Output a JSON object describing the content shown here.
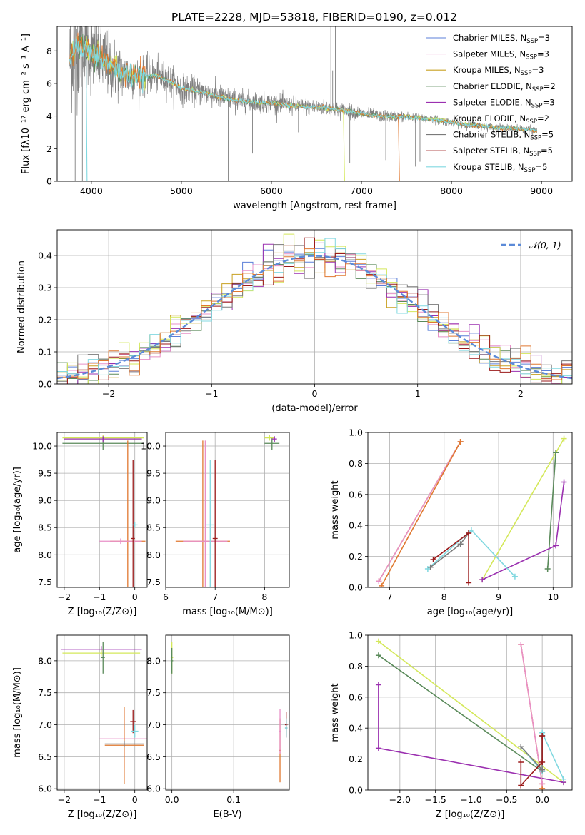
{
  "figure": {
    "title": "PLATE=2228, MJD=53818, FIBERID=0190, z=0.012"
  },
  "colors": {
    "Chabrier MILES": "#5b7fd8",
    "Salpeter MILES": "#e890c8",
    "Kroupa MILES": "#c8a020",
    "Chabrier ELODIE": "#5a8a5a",
    "Salpeter ELODIE": "#9b30b0",
    "Kroupa ELODIE": "#d4e85a",
    "Chabrier STELIB": "#7a7a7a",
    "Salpeter STELIB": "#9b1a1a",
    "Kroupa STELIB": "#80d8e0",
    "orange": "#e07830",
    "normal": "#5b8ad8",
    "data": "#808080"
  },
  "chart_data": [
    {
      "id": "spectrum",
      "type": "line",
      "xlabel": "wavelength [Angstrom, rest frame]",
      "ylabel": "Flux [fλ10⁻¹⁷ erg cm⁻² s⁻¹ A⁻¹]",
      "xlim": [
        3620,
        9340
      ],
      "ylim": [
        0,
        9.5
      ],
      "xticks": [
        4000,
        5000,
        6000,
        7000,
        8000,
        9000
      ],
      "yticks": [
        0,
        2,
        4,
        6,
        8
      ],
      "grid": false,
      "legend_position": "top-right",
      "legend": [
        {
          "label": "Chabrier MILES, N",
          "sub": "SSP",
          "tail": "=3",
          "series": "Chabrier MILES"
        },
        {
          "label": "Salpeter MILES, N",
          "sub": "SSP",
          "tail": "=3",
          "series": "Salpeter MILES"
        },
        {
          "label": "Kroupa MILES, N",
          "sub": "SSP",
          "tail": "=3",
          "series": "Kroupa MILES"
        },
        {
          "label": "Chabrier ELODIE, N",
          "sub": "SSP",
          "tail": "=2",
          "series": "Chabrier ELODIE"
        },
        {
          "label": "Salpeter ELODIE, N",
          "sub": "SSP",
          "tail": "=3",
          "series": "Salpeter ELODIE"
        },
        {
          "label": "Kroupa ELODIE, N",
          "sub": "SSP",
          "tail": "=2",
          "series": "Kroupa ELODIE"
        },
        {
          "label": "Chabrier STELIB, N",
          "sub": "SSP",
          "tail": "=5",
          "series": "Chabrier STELIB"
        },
        {
          "label": "Salpeter STELIB, N",
          "sub": "SSP",
          "tail": "=5",
          "series": "Salpeter STELIB"
        },
        {
          "label": "Kroupa STELIB, N",
          "sub": "SSP",
          "tail": "=5",
          "series": "Kroupa STELIB"
        }
      ],
      "model_continuum": [
        [
          3760,
          7.6
        ],
        [
          3850,
          8.4
        ],
        [
          3950,
          8.1
        ],
        [
          4050,
          7.8
        ],
        [
          4200,
          7.1
        ],
        [
          4350,
          6.6
        ],
        [
          4500,
          6.4
        ],
        [
          4700,
          6.5
        ],
        [
          4860,
          6.2
        ],
        [
          5000,
          5.7
        ],
        [
          5200,
          5.5
        ],
        [
          5400,
          5.2
        ],
        [
          5600,
          4.95
        ],
        [
          5800,
          4.85
        ],
        [
          6000,
          4.8
        ],
        [
          6200,
          4.65
        ],
        [
          6400,
          4.55
        ],
        [
          6600,
          4.5
        ],
        [
          6800,
          4.35
        ],
        [
          7000,
          4.15
        ],
        [
          7200,
          4.0
        ],
        [
          7500,
          3.95
        ],
        [
          7800,
          3.8
        ],
        [
          8000,
          3.6
        ],
        [
          8200,
          3.45
        ],
        [
          8400,
          3.35
        ],
        [
          8600,
          3.25
        ],
        [
          8800,
          3.2
        ],
        [
          8950,
          3.1
        ]
      ],
      "data_range": [
        3760,
        8950
      ],
      "data_noise_sigma": [
        [
          3760,
          1.8
        ],
        [
          4000,
          1.3
        ],
        [
          4500,
          0.6
        ],
        [
          5000,
          0.45
        ],
        [
          5500,
          0.35
        ],
        [
          6000,
          0.3
        ],
        [
          6500,
          0.25
        ],
        [
          7000,
          0.2
        ],
        [
          7500,
          0.15
        ],
        [
          8000,
          0.12
        ],
        [
          8950,
          0.12
        ]
      ],
      "data_spikes": [
        [
          5520,
          0.0
        ],
        [
          5790,
          1.7
        ],
        [
          6300,
          3.0
        ],
        [
          6660,
          9.5
        ],
        [
          6680,
          6.8
        ],
        [
          6710,
          9.5
        ],
        [
          6870,
          1.1
        ],
        [
          7270,
          1.3
        ],
        [
          7600,
          0.9
        ],
        [
          7650,
          1.2
        ],
        [
          3900,
          0.0
        ],
        [
          3820,
          0.0
        ]
      ],
      "model_drops": [
        {
          "series": "orange",
          "x": 7410,
          "y": 0.0
        },
        {
          "series": "Kroupa ELODIE",
          "x": 6800,
          "y": 0.0
        },
        {
          "series": "Kroupa STELIB",
          "x": 3940,
          "y": 0.0
        }
      ]
    },
    {
      "id": "residuals",
      "type": "step",
      "xlabel": "(data-model)/error",
      "ylabel": "Normed distribution",
      "xlim": [
        -2.5,
        2.5
      ],
      "ylim": [
        0,
        0.48
      ],
      "xticks": [
        -2,
        -1,
        0,
        1,
        2
      ],
      "yticks": [
        0.0,
        0.1,
        0.2,
        0.3,
        0.4
      ],
      "grid": true,
      "legend_position": "top-right",
      "legend": [
        {
          "label": "𝒩(0, 1)",
          "style": "dashed"
        }
      ],
      "bin_width": 0.1,
      "bin_start": -2.5,
      "noise_amplitude": 0.025
    },
    {
      "id": "age-vs-Z",
      "type": "errorbar",
      "xlabel": "Z [log₁₀(Z/Z⊙)]",
      "ylabel": "age  [log₁₀(age/yr)]",
      "xlim": [
        -2.2,
        0.35
      ],
      "ylim": [
        7.4,
        10.25
      ],
      "xticks": [
        -2,
        -1,
        0
      ],
      "yticks": [
        7.5,
        8.0,
        8.5,
        9.0,
        9.5,
        10.0
      ],
      "grid": true,
      "points": [
        {
          "series": "Kroupa ELODIE",
          "x": -0.9,
          "y": 10.15,
          "xerr": 1.15,
          "yerr": 0.05
        },
        {
          "series": "Chabrier ELODIE",
          "x": -0.9,
          "y": 10.05,
          "xerr": 1.15,
          "yerr": 0.12
        },
        {
          "series": "Salpeter ELODIE",
          "x": -0.9,
          "y": 10.13,
          "xerr": 1.1,
          "yerr": 0.05
        },
        {
          "series": "orange",
          "x": -0.2,
          "y": 8.25,
          "xerr": 0.5,
          "yerr": 1.85
        },
        {
          "series": "Salpeter MILES",
          "x": -0.4,
          "y": 8.25,
          "xerr": 0.6,
          "yerr": 0.05
        },
        {
          "series": "Salpeter STELIB",
          "x": -0.05,
          "y": 8.3,
          "xerr": 0.05,
          "yerr": 1.45
        },
        {
          "series": "Kroupa STELIB",
          "x": 0.0,
          "y": 8.55,
          "xerr": 0.08,
          "yerr": 0.05
        }
      ]
    },
    {
      "id": "age-vs-mass",
      "type": "errorbar",
      "xlabel": "mass [log₁₀(M/M⊙)]",
      "ylabel": "",
      "xlim": [
        6.0,
        8.5
      ],
      "ylim": [
        7.4,
        10.25
      ],
      "xticks": [
        6,
        7,
        8
      ],
      "yticks": [
        7.5,
        8.0,
        8.5,
        9.0,
        9.5,
        10.0
      ],
      "grid": true,
      "points": [
        {
          "series": "Chabrier ELODIE",
          "x": 8.15,
          "y": 10.05,
          "xerr": 0.15,
          "yerr": 0.12
        },
        {
          "series": "Kroupa ELODIE",
          "x": 8.1,
          "y": 10.15,
          "xerr": 0.1,
          "yerr": 0.05
        },
        {
          "series": "Salpeter ELODIE",
          "x": 8.2,
          "y": 10.13,
          "xerr": 0.05,
          "yerr": 0.05
        },
        {
          "series": "orange",
          "x": 6.75,
          "y": 8.25,
          "xerr": 0.55,
          "yerr": 1.85
        },
        {
          "series": "Salpeter MILES",
          "x": 6.8,
          "y": 8.25,
          "xerr": 0.45,
          "yerr": 1.85
        },
        {
          "series": "Salpeter STELIB",
          "x": 7.0,
          "y": 8.3,
          "xerr": 0.05,
          "yerr": 1.45
        },
        {
          "series": "Kroupa STELIB",
          "x": 6.9,
          "y": 8.55,
          "xerr": 0.08,
          "yerr": 1.2
        }
      ]
    },
    {
      "id": "mass-weight-vs-age",
      "type": "line",
      "xlabel": "age  [log₁₀(age/yr)]",
      "ylabel": "mass weight",
      "xlim": [
        6.6,
        10.35
      ],
      "ylim": [
        0,
        1.0
      ],
      "xticks": [
        7,
        8,
        9,
        10
      ],
      "yticks": [
        0.0,
        0.2,
        0.4,
        0.6,
        0.8,
        1.0
      ],
      "grid": true,
      "series": [
        {
          "name": "Kroupa MILES",
          "x": [
            6.8,
            8.3
          ],
          "y": [
            0.04,
            0.94
          ]
        },
        {
          "name": "Salpeter MILES",
          "x": [
            6.8,
            8.3
          ],
          "y": [
            0.04,
            0.94
          ]
        },
        {
          "name": "orange",
          "x": [
            6.85,
            8.3
          ],
          "y": [
            0.01,
            0.94
          ]
        },
        {
          "name": "Kroupa ELODIE",
          "x": [
            8.7,
            10.2
          ],
          "y": [
            0.05,
            0.96
          ]
        },
        {
          "name": "Chabrier ELODIE",
          "x": [
            9.9,
            10.05
          ],
          "y": [
            0.12,
            0.87
          ]
        },
        {
          "name": "Salpeter ELODIE",
          "x": [
            8.7,
            10.05,
            10.2
          ],
          "y": [
            0.05,
            0.27,
            0.68
          ]
        },
        {
          "name": "Kroupa STELIB",
          "x": [
            7.7,
            8.5,
            9.3
          ],
          "y": [
            0.12,
            0.37,
            0.07
          ]
        },
        {
          "name": "Chabrier STELIB",
          "x": [
            7.75,
            8.3,
            8.45
          ],
          "y": [
            0.13,
            0.28,
            0.35
          ]
        },
        {
          "name": "Salpeter STELIB",
          "x": [
            7.8,
            8.45,
            8.45
          ],
          "y": [
            0.18,
            0.35,
            0.03
          ]
        }
      ]
    },
    {
      "id": "mass-vs-Z",
      "type": "errorbar",
      "xlabel": "Z [log₁₀(Z/Z⊙)]",
      "ylabel": "mass [log₁₀(M/M⊙)]",
      "xlim": [
        -2.2,
        0.35
      ],
      "ylim": [
        5.98,
        8.4
      ],
      "xticks": [
        -2,
        -1,
        0
      ],
      "yticks": [
        6.0,
        6.5,
        7.0,
        7.5,
        8.0
      ],
      "grid": true,
      "points": [
        {
          "series": "Salpeter ELODIE",
          "x": -0.95,
          "y": 8.18,
          "xerr": 1.15,
          "yerr": 0.05
        },
        {
          "series": "Kroupa ELODIE",
          "x": -0.95,
          "y": 8.12,
          "xerr": 1.1,
          "yerr": 0.05
        },
        {
          "series": "Chabrier ELODIE",
          "x": -0.9,
          "y": 8.05,
          "xerr": 0.05,
          "yerr": 0.25
        },
        {
          "series": "Salpeter MILES",
          "x": -0.3,
          "y": 6.78,
          "xerr": 0.7,
          "yerr": 0.45
        },
        {
          "series": "orange",
          "x": -0.3,
          "y": 6.68,
          "xerr": 0.55,
          "yerr": 0.6
        },
        {
          "series": "Chabrier STELIB",
          "x": -0.3,
          "y": 6.7,
          "xerr": 0.55,
          "yerr": 0.05
        },
        {
          "series": "Salpeter STELIB",
          "x": -0.05,
          "y": 7.05,
          "xerr": 0.08,
          "yerr": 0.18
        },
        {
          "series": "Kroupa STELIB",
          "x": 0.0,
          "y": 6.9,
          "xerr": 0.1,
          "yerr": 0.1
        }
      ]
    },
    {
      "id": "mass-vs-ebv",
      "type": "errorbar",
      "xlabel": "E(B-V)",
      "ylabel": "",
      "xlim": [
        -0.01,
        0.19
      ],
      "ylim": [
        5.98,
        8.4
      ],
      "xticks": [
        0.0,
        0.1
      ],
      "yticks": [
        6.0,
        6.5,
        7.0,
        7.5,
        8.0
      ],
      "grid": true,
      "points": [
        {
          "series": "Kroupa ELODIE",
          "x": 0.0,
          "y": 8.05,
          "xerr": 0.002,
          "yerr": 0.25
        },
        {
          "series": "Chabrier ELODIE",
          "x": 0.0,
          "y": 8.0,
          "xerr": 0.002,
          "yerr": 0.2
        },
        {
          "series": "orange",
          "x": 0.175,
          "y": 6.6,
          "xerr": 0.002,
          "yerr": 0.5
        },
        {
          "series": "Salpeter MILES",
          "x": 0.175,
          "y": 6.9,
          "xerr": 0.002,
          "yerr": 0.35
        },
        {
          "series": "Salpeter STELIB",
          "x": 0.185,
          "y": 7.0,
          "xerr": 0.002,
          "yerr": 0.2
        },
        {
          "series": "Chabrier STELIB",
          "x": 0.185,
          "y": 6.95,
          "xerr": 0.002,
          "yerr": 0.12
        },
        {
          "series": "Kroupa STELIB",
          "x": 0.185,
          "y": 6.95,
          "xerr": 0.002,
          "yerr": 0.15
        }
      ]
    },
    {
      "id": "mass-weight-vs-Z",
      "type": "line",
      "xlabel": "Z [log₁₀(Z/Z⊙)]",
      "ylabel": "mass weight",
      "xlim": [
        -2.45,
        0.42
      ],
      "ylim": [
        0,
        1.0
      ],
      "xticks": [
        -2.0,
        -1.5,
        -1.0,
        -0.5,
        0.0
      ],
      "xticklabels": [
        "−2.0",
        "−1.5",
        "−1.0",
        "−0.5",
        "0.0"
      ],
      "yticks": [
        0.0,
        0.2,
        0.4,
        0.6,
        0.8,
        1.0
      ],
      "grid": true,
      "series": [
        {
          "name": "Kroupa ELODIE",
          "x": [
            -2.3,
            0.3
          ],
          "y": [
            0.96,
            0.05
          ]
        },
        {
          "name": "Chabrier ELODIE",
          "x": [
            -2.3,
            0.0
          ],
          "y": [
            0.87,
            0.12
          ]
        },
        {
          "name": "Salpeter ELODIE",
          "x": [
            -2.3,
            -2.3,
            0.3
          ],
          "y": [
            0.68,
            0.27,
            0.05
          ]
        },
        {
          "name": "orange",
          "x": [
            -0.3,
            0.0,
            0.0
          ],
          "y": [
            0.94,
            0.04,
            0.01
          ]
        },
        {
          "name": "Salpeter MILES",
          "x": [
            -0.3,
            0.0
          ],
          "y": [
            0.94,
            0.04
          ]
        },
        {
          "name": "Kroupa STELIB",
          "x": [
            -0.3,
            0.0,
            0.0,
            0.3
          ],
          "y": [
            0.28,
            0.12,
            0.37,
            0.07
          ]
        },
        {
          "name": "Chabrier STELIB",
          "x": [
            -0.3,
            0.0,
            0.0
          ],
          "y": [
            0.28,
            0.13,
            0.35
          ]
        },
        {
          "name": "Salpeter STELIB",
          "x": [
            -0.3,
            -0.3,
            0.0,
            0.0
          ],
          "y": [
            0.18,
            0.03,
            0.18,
            0.35
          ]
        }
      ]
    }
  ]
}
